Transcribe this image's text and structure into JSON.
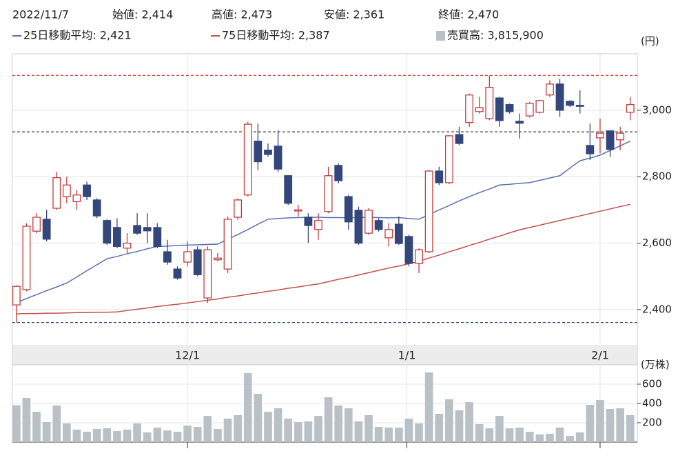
{
  "header": {
    "date": "2022/11/7",
    "open": "始値: 2,414",
    "high": "高値: 2,473",
    "low": "安値: 2,361",
    "close": "終値: 2,470"
  },
  "chart_data": [
    {
      "type": "candlestick",
      "y_unit": "(円)",
      "up_color": "#c23b3b",
      "down_color": "#33477a",
      "open": [
        2414,
        2460,
        2636,
        2672,
        2705,
        2740,
        2725,
        2775,
        2730,
        2668,
        2647,
        2585,
        2653,
        2647,
        2647,
        2574,
        2522,
        2543,
        2580,
        2435,
        2550,
        2522,
        2678,
        2745,
        2907,
        2880,
        2892,
        2803,
        2697,
        2678,
        2641,
        2695,
        2834,
        2740,
        2699,
        2630,
        2668,
        2616,
        2657,
        2620,
        2539,
        2574,
        2817,
        2782,
        2927,
        2963,
        2996,
        2975,
        3037,
        3017,
        2967,
        2983,
        2994,
        3046,
        3079,
        3027,
        3015,
        2894,
        2917,
        2938,
        2911,
        2994
      ],
      "high": [
        2473,
        2660,
        2690,
        2700,
        2815,
        2800,
        2760,
        2785,
        2735,
        2672,
        2675,
        2630,
        2690,
        2690,
        2660,
        2610,
        2530,
        2605,
        2590,
        2590,
        2570,
        2680,
        2735,
        2965,
        2960,
        2900,
        2940,
        2805,
        2715,
        2690,
        2690,
        2830,
        2840,
        2745,
        2710,
        2705,
        2675,
        2660,
        2680,
        2625,
        2585,
        2820,
        2830,
        2925,
        2950,
        3050,
        3040,
        3105,
        3040,
        3020,
        2990,
        3025,
        3032,
        3090,
        3095,
        3030,
        3060,
        2960,
        2975,
        2940,
        2950,
        3040
      ],
      "low": [
        2361,
        2455,
        2630,
        2605,
        2700,
        2720,
        2700,
        2730,
        2675,
        2595,
        2585,
        2570,
        2625,
        2600,
        2585,
        2535,
        2490,
        2530,
        2500,
        2420,
        2545,
        2510,
        2670,
        2740,
        2820,
        2860,
        2815,
        2715,
        2680,
        2600,
        2610,
        2690,
        2780,
        2640,
        2595,
        2625,
        2635,
        2590,
        2595,
        2530,
        2510,
        2570,
        2775,
        2778,
        2895,
        2950,
        2990,
        2970,
        2950,
        2990,
        2915,
        2978,
        2990,
        3040,
        2980,
        3010,
        2990,
        2850,
        2870,
        2860,
        2880,
        2970
      ],
      "close": [
        2470,
        2651,
        2678,
        2612,
        2797,
        2775,
        2745,
        2740,
        2682,
        2600,
        2590,
        2600,
        2630,
        2637,
        2590,
        2543,
        2495,
        2574,
        2505,
        2580,
        2555,
        2672,
        2730,
        2958,
        2845,
        2867,
        2823,
        2720,
        2700,
        2653,
        2668,
        2803,
        2788,
        2664,
        2600,
        2699,
        2641,
        2641,
        2599,
        2539,
        2580,
        2817,
        2782,
        2923,
        2900,
        3046,
        3008,
        3069,
        2969,
        2996,
        2961,
        3021,
        3029,
        3079,
        3000,
        3015,
        3013,
        2869,
        2931,
        2882,
        2931,
        3017
      ],
      "series": [
        {
          "name": "25日移動平均: 2,421",
          "color": "#5a6fae",
          "values": [
            2421,
            2433,
            2445,
            2457,
            2468,
            2480,
            2498,
            2517,
            2535,
            2553,
            2560,
            2568,
            2575,
            2583,
            2590,
            2591,
            2593,
            2594,
            2595,
            2596,
            2597,
            2612,
            2626,
            2641,
            2657,
            2672,
            2674,
            2676,
            2677,
            2678,
            2678,
            2677,
            2677,
            2676,
            2677,
            2678,
            2677,
            2676,
            2677,
            2674,
            2672,
            2686,
            2700,
            2713,
            2727,
            2740,
            2752,
            2763,
            2775,
            2777,
            2780,
            2782,
            2789,
            2796,
            2803,
            2826,
            2848,
            2856,
            2865,
            2879,
            2893,
            2907
          ]
        },
        {
          "name": "75日移動平均: 2,387",
          "color": "#c0504d",
          "values": [
            2387,
            2388,
            2388,
            2389,
            2389,
            2390,
            2391,
            2391,
            2392,
            2392,
            2393,
            2397,
            2401,
            2405,
            2409,
            2413,
            2416,
            2420,
            2424,
            2428,
            2432,
            2437,
            2441,
            2446,
            2450,
            2455,
            2459,
            2464,
            2468,
            2473,
            2477,
            2484,
            2491,
            2497,
            2504,
            2511,
            2518,
            2525,
            2531,
            2538,
            2545,
            2555,
            2564,
            2574,
            2583,
            2593,
            2602,
            2612,
            2621,
            2631,
            2640,
            2647,
            2654,
            2661,
            2668,
            2675,
            2682,
            2689,
            2696,
            2703,
            2710,
            2717
          ]
        }
      ],
      "reference_lines": [
        {
          "value": 3105,
          "color": "#d03030"
        },
        {
          "value": 2935,
          "color": "#222222"
        },
        {
          "value": 2361,
          "color": "#33477a"
        }
      ],
      "xlim": [
        -0.4,
        61.7
      ],
      "xticks": [
        {
          "value": 17,
          "label": "12/1"
        },
        {
          "value": 38.8,
          "label": "1/1"
        },
        {
          "value": 58,
          "label": "2/1"
        }
      ],
      "ylim": [
        2298,
        3170
      ],
      "yticks": [
        {
          "value": 2400,
          "label": "2,400"
        },
        {
          "value": 2600,
          "label": "2,600"
        },
        {
          "value": 2800,
          "label": "2,800"
        },
        {
          "value": 3000,
          "label": "3,000"
        }
      ],
      "grid": true
    },
    {
      "type": "bar",
      "y_unit": "(万株)",
      "series": [
        {
          "name": "売買高: 3,815,900",
          "color": "#b9c1c7",
          "values": [
            382,
            457,
            314,
            207,
            379,
            193,
            129,
            107,
            136,
            143,
            114,
            129,
            193,
            100,
            150,
            121,
            107,
            171,
            157,
            271,
            136,
            243,
            279,
            714,
            500,
            314,
            350,
            243,
            207,
            214,
            271,
            464,
            379,
            350,
            214,
            279,
            157,
            150,
            150,
            243,
            193,
            721,
            293,
            443,
            329,
            414,
            186,
            143,
            271,
            143,
            150,
            107,
            79,
            86,
            150,
            64,
            100,
            386,
            436,
            343,
            350,
            279
          ]
        }
      ],
      "ylim": [
        0,
        800
      ],
      "yticks": [
        200,
        400,
        600
      ],
      "grid": true
    }
  ]
}
